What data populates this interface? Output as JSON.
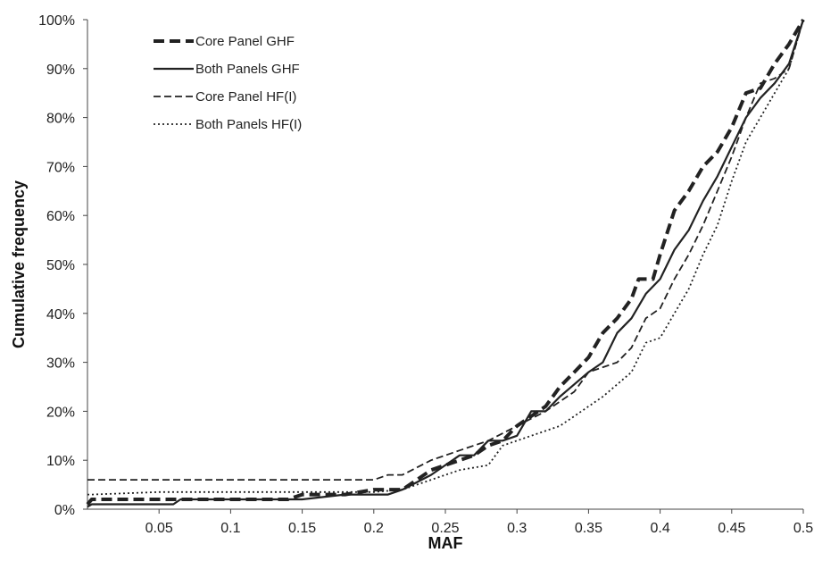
{
  "chart_data": {
    "type": "line",
    "title": "",
    "xlabel": "MAF",
    "ylabel": "Cumulative frequency",
    "xlim": [
      0,
      0.5
    ],
    "ylim": [
      0,
      100
    ],
    "x_ticks": [
      "0.05",
      "0.1",
      "0.15",
      "0.2",
      "0.25",
      "0.3",
      "0.35",
      "0.4",
      "0.45",
      "0.5"
    ],
    "y_ticks": [
      "0%",
      "10%",
      "20%",
      "30%",
      "40%",
      "50%",
      "60%",
      "70%",
      "80%",
      "90%",
      "100%"
    ],
    "grid": false,
    "legend_position": "top-left",
    "series": [
      {
        "name": "Core Panel GHF",
        "style": "thick-dashed",
        "color": "#222222",
        "points": [
          [
            0,
            1
          ],
          [
            0.003,
            2
          ],
          [
            0.05,
            2
          ],
          [
            0.1,
            2
          ],
          [
            0.14,
            2
          ],
          [
            0.15,
            3
          ],
          [
            0.18,
            3
          ],
          [
            0.2,
            4
          ],
          [
            0.22,
            4
          ],
          [
            0.24,
            8
          ],
          [
            0.26,
            10
          ],
          [
            0.27,
            11
          ],
          [
            0.28,
            13
          ],
          [
            0.29,
            14
          ],
          [
            0.3,
            17
          ],
          [
            0.31,
            19
          ],
          [
            0.32,
            21
          ],
          [
            0.33,
            25
          ],
          [
            0.34,
            28
          ],
          [
            0.35,
            31
          ],
          [
            0.36,
            36
          ],
          [
            0.37,
            39
          ],
          [
            0.38,
            43
          ],
          [
            0.385,
            47
          ],
          [
            0.395,
            47
          ],
          [
            0.4,
            52
          ],
          [
            0.41,
            61
          ],
          [
            0.42,
            65
          ],
          [
            0.43,
            70
          ],
          [
            0.44,
            73
          ],
          [
            0.45,
            78
          ],
          [
            0.46,
            85
          ],
          [
            0.47,
            86
          ],
          [
            0.48,
            91
          ],
          [
            0.49,
            95
          ],
          [
            0.5,
            100
          ]
        ]
      },
      {
        "name": "Both Panels GHF",
        "style": "solid",
        "color": "#222222",
        "points": [
          [
            0,
            0.5
          ],
          [
            0.003,
            1
          ],
          [
            0.06,
            1
          ],
          [
            0.065,
            2
          ],
          [
            0.14,
            2
          ],
          [
            0.15,
            2
          ],
          [
            0.18,
            3
          ],
          [
            0.2,
            3
          ],
          [
            0.21,
            3
          ],
          [
            0.22,
            4
          ],
          [
            0.24,
            7
          ],
          [
            0.26,
            11
          ],
          [
            0.27,
            11
          ],
          [
            0.28,
            14
          ],
          [
            0.29,
            14
          ],
          [
            0.3,
            15
          ],
          [
            0.31,
            20
          ],
          [
            0.32,
            20
          ],
          [
            0.33,
            23
          ],
          [
            0.35,
            28
          ],
          [
            0.36,
            30
          ],
          [
            0.37,
            36
          ],
          [
            0.38,
            39
          ],
          [
            0.39,
            44
          ],
          [
            0.4,
            47
          ],
          [
            0.41,
            53
          ],
          [
            0.42,
            57
          ],
          [
            0.43,
            63
          ],
          [
            0.44,
            68
          ],
          [
            0.45,
            74
          ],
          [
            0.46,
            80
          ],
          [
            0.47,
            84
          ],
          [
            0.48,
            87
          ],
          [
            0.49,
            91
          ],
          [
            0.5,
            100
          ]
        ]
      },
      {
        "name": "Core Panel HF(I)",
        "style": "dashed",
        "color": "#222222",
        "points": [
          [
            0,
            6
          ],
          [
            0.05,
            6
          ],
          [
            0.1,
            6
          ],
          [
            0.15,
            6
          ],
          [
            0.2,
            6
          ],
          [
            0.21,
            7
          ],
          [
            0.22,
            7
          ],
          [
            0.24,
            10
          ],
          [
            0.26,
            12
          ],
          [
            0.28,
            14
          ],
          [
            0.3,
            17
          ],
          [
            0.32,
            20
          ],
          [
            0.34,
            24
          ],
          [
            0.35,
            28
          ],
          [
            0.36,
            29
          ],
          [
            0.37,
            30
          ],
          [
            0.38,
            33
          ],
          [
            0.39,
            39
          ],
          [
            0.4,
            41
          ],
          [
            0.41,
            47
          ],
          [
            0.42,
            52
          ],
          [
            0.43,
            58
          ],
          [
            0.44,
            65
          ],
          [
            0.45,
            72
          ],
          [
            0.46,
            80
          ],
          [
            0.47,
            87
          ],
          [
            0.48,
            88
          ],
          [
            0.49,
            90
          ],
          [
            0.5,
            100
          ]
        ]
      },
      {
        "name": "Both Panels HF(I)",
        "style": "dotted",
        "color": "#222222",
        "points": [
          [
            0,
            3
          ],
          [
            0.003,
            3
          ],
          [
            0.05,
            3.5
          ],
          [
            0.1,
            3.5
          ],
          [
            0.15,
            3.5
          ],
          [
            0.2,
            3.5
          ],
          [
            0.22,
            4
          ],
          [
            0.24,
            6
          ],
          [
            0.26,
            8
          ],
          [
            0.28,
            9
          ],
          [
            0.29,
            13
          ],
          [
            0.3,
            14
          ],
          [
            0.31,
            15
          ],
          [
            0.33,
            17
          ],
          [
            0.34,
            19
          ],
          [
            0.36,
            23
          ],
          [
            0.38,
            28
          ],
          [
            0.39,
            34
          ],
          [
            0.4,
            35
          ],
          [
            0.41,
            40
          ],
          [
            0.42,
            45
          ],
          [
            0.43,
            52
          ],
          [
            0.44,
            58
          ],
          [
            0.45,
            67
          ],
          [
            0.46,
            75
          ],
          [
            0.47,
            80
          ],
          [
            0.48,
            85
          ],
          [
            0.49,
            90
          ],
          [
            0.5,
            100
          ]
        ]
      }
    ]
  }
}
